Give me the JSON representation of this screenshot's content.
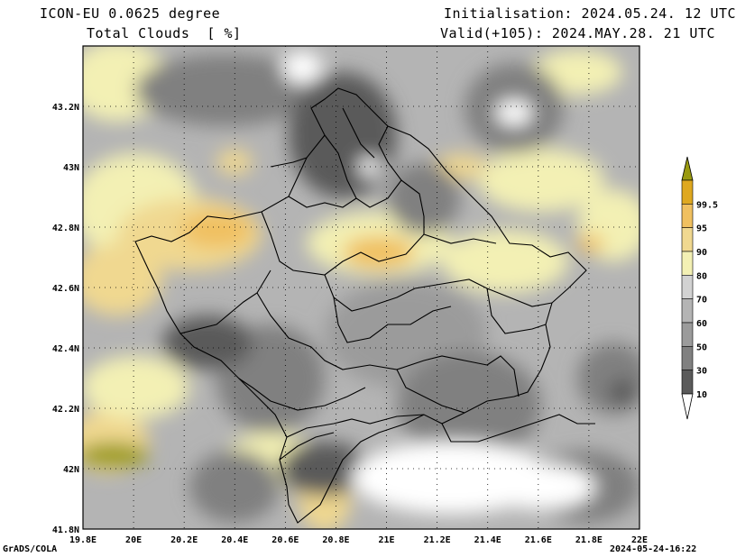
{
  "header": {
    "model": "ICON-EU 0.0625 degree",
    "variable": "Total Clouds  [ %]",
    "init": "Initialisation: 2024.05.24. 12 UTC",
    "valid": "Valid(+105): 2024.MAY.28. 21 UTC"
  },
  "footer": {
    "left": "GrADS/COLA",
    "right": "2024-05-24-16:22"
  },
  "map": {
    "lon_range": [
      19.8,
      22.0
    ],
    "lat_range": [
      41.8,
      43.4
    ],
    "lon_ticks": [
      "19.8E",
      "20E",
      "20.2E",
      "20.4E",
      "20.6E",
      "20.8E",
      "21E",
      "21.2E",
      "21.4E",
      "21.6E",
      "21.8E",
      "22E"
    ],
    "lat_ticks": [
      "41.8N",
      "42N",
      "42.2N",
      "42.4N",
      "42.6N",
      "42.8N",
      "43N",
      "43.2N"
    ]
  },
  "legend": {
    "levels": [
      "10",
      "30",
      "50",
      "60",
      "70",
      "80",
      "90",
      "95",
      "99.5"
    ],
    "colors": [
      "#ffffff",
      "#5a5a5a",
      "#808080",
      "#9b9b9b",
      "#b4b4b4",
      "#d2d2d2",
      "#f3f0b4",
      "#f0d890",
      "#f0c060",
      "#dfa820",
      "#9a9a10"
    ]
  }
}
